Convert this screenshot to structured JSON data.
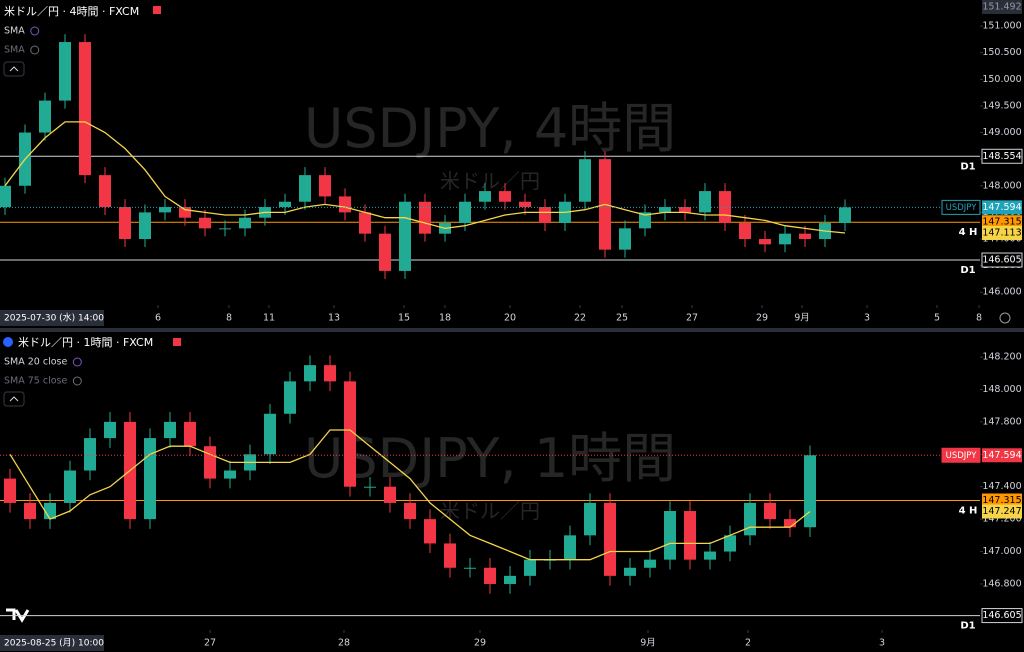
{
  "chart_data": [
    {
      "type": "candlestick",
      "title": "米ドル／円 · 4時間 · FXCM",
      "symbol": "USDJPY",
      "watermark": "USDJPY, 4時間",
      "watermark_sub": "米ドル／円",
      "indicators": [
        {
          "name": "SMA",
          "visible": true
        },
        {
          "name": "SMA",
          "visible": false
        }
      ],
      "date_label": "2025-07-30 (水)  14:00",
      "up_color": "#22ab94",
      "down_color": "#f23645",
      "xlim": [
        -0.25,
        48.75
      ],
      "xticks": [
        {
          "value": 7.65,
          "label": "6"
        },
        {
          "value": 11.2,
          "label": "8"
        },
        {
          "value": 13.2,
          "label": "11"
        },
        {
          "value": 16.45,
          "label": "13"
        },
        {
          "value": 19.95,
          "label": "15"
        },
        {
          "value": 22,
          "label": "18"
        },
        {
          "value": 25.25,
          "label": "20"
        },
        {
          "value": 28.75,
          "label": "22"
        },
        {
          "value": 30.85,
          "label": "25"
        },
        {
          "value": 34.35,
          "label": "27"
        },
        {
          "value": 37.85,
          "label": "29"
        },
        {
          "value": 39.85,
          "label": "9月"
        },
        {
          "value": 43.1,
          "label": "3"
        },
        {
          "value": 46.6,
          "label": "5"
        },
        {
          "value": 48.7,
          "label": "8"
        }
      ],
      "ylim": [
        145.76,
        151.49
      ],
      "yticks": [
        {
          "value": 146,
          "label": "146.000"
        },
        {
          "value": 146.5,
          "label": "146.500"
        },
        {
          "value": 147,
          "label": "147.000"
        },
        {
          "value": 147.5,
          "label": "147.500"
        },
        {
          "value": 148,
          "label": "148.000"
        },
        {
          "value": 148.5,
          "label": "148.500"
        },
        {
          "value": 149,
          "label": "149.000"
        },
        {
          "value": 149.5,
          "label": "149.500"
        },
        {
          "value": 150,
          "label": "150.000"
        },
        {
          "value": 150.5,
          "label": "150.500"
        },
        {
          "value": 151,
          "label": "151.000"
        }
      ],
      "x": [
        0,
        1,
        2,
        3,
        4,
        5,
        6,
        7,
        8,
        9,
        10,
        11,
        12,
        13,
        14,
        15,
        16,
        17,
        18,
        19,
        20,
        21,
        22,
        23,
        24,
        25,
        26,
        27,
        28,
        29,
        30,
        31,
        32,
        33,
        34,
        35,
        36,
        37,
        38,
        39,
        40,
        41,
        42
      ],
      "open": [
        147.6,
        148.0,
        149.0,
        149.6,
        150.7,
        148.2,
        147.6,
        147.0,
        147.5,
        147.6,
        147.4,
        147.2,
        147.2,
        147.4,
        147.6,
        147.7,
        148.2,
        147.8,
        147.5,
        147.1,
        146.4,
        147.7,
        147.1,
        147.3,
        147.7,
        147.9,
        147.7,
        147.6,
        147.3,
        147.7,
        148.5,
        146.8,
        147.2,
        147.5,
        147.6,
        147.5,
        147.9,
        147.3,
        147.0,
        146.9,
        147.1,
        147.0,
        147.3
      ],
      "high": [
        148.15,
        149.15,
        149.75,
        150.85,
        150.85,
        148.35,
        147.75,
        147.65,
        147.75,
        147.75,
        147.55,
        147.35,
        147.55,
        147.75,
        147.85,
        148.35,
        148.35,
        147.95,
        147.65,
        147.25,
        147.85,
        147.85,
        147.45,
        147.85,
        148.05,
        148.05,
        147.85,
        147.75,
        147.85,
        148.65,
        148.65,
        147.35,
        147.65,
        147.75,
        147.75,
        148.05,
        148.05,
        147.45,
        147.15,
        147.25,
        147.25,
        147.45,
        147.744
      ],
      "low": [
        147.45,
        147.85,
        148.85,
        149.45,
        148.05,
        147.45,
        146.85,
        146.85,
        147.35,
        147.25,
        147.05,
        147.05,
        147.05,
        147.25,
        147.45,
        147.55,
        147.65,
        147.35,
        146.95,
        146.25,
        146.25,
        146.95,
        146.95,
        147.15,
        147.55,
        147.55,
        147.45,
        147.15,
        147.15,
        147.55,
        146.65,
        146.65,
        147.05,
        147.35,
        147.35,
        147.35,
        147.15,
        146.85,
        146.75,
        146.75,
        146.85,
        146.85,
        147.15
      ],
      "close": [
        148.0,
        149.0,
        149.6,
        150.7,
        148.2,
        147.6,
        147.0,
        147.5,
        147.6,
        147.4,
        147.2,
        147.2,
        147.4,
        147.6,
        147.7,
        148.2,
        147.8,
        147.5,
        147.1,
        146.4,
        147.7,
        147.1,
        147.3,
        147.7,
        147.9,
        147.7,
        147.6,
        147.3,
        147.7,
        148.5,
        146.8,
        147.2,
        147.5,
        147.6,
        147.5,
        147.9,
        147.3,
        147.0,
        146.9,
        147.1,
        147.0,
        147.3,
        147.594
      ],
      "sma": {
        "color": "#f5d547",
        "values": [
          148.0,
          148.5,
          148.9,
          149.2,
          149.2,
          149.0,
          148.7,
          148.3,
          147.8,
          147.55,
          147.5,
          147.45,
          147.45,
          147.5,
          147.5,
          147.6,
          147.65,
          147.6,
          147.5,
          147.4,
          147.4,
          147.3,
          147.2,
          147.25,
          147.35,
          147.45,
          147.5,
          147.5,
          147.5,
          147.55,
          147.65,
          147.55,
          147.45,
          147.5,
          147.5,
          147.45,
          147.45,
          147.4,
          147.35,
          147.25,
          147.2,
          147.15,
          147.113
        ]
      },
      "levels": [
        {
          "value": 148.554,
          "label": "148.554",
          "tag": "D1",
          "color": "#d1d4dc"
        },
        {
          "value": 147.315,
          "label": "147.315",
          "tag": "4 H",
          "color": "#ff9800"
        },
        {
          "value": 146.605,
          "label": "146.605",
          "tag": "D1",
          "color": "#d1d4dc"
        }
      ],
      "price_tags": [
        {
          "value": 151.492,
          "label": "151.492",
          "color": "#2a2e39",
          "text_color": "#9598a1"
        },
        {
          "value": 147.594,
          "label": "147.594",
          "name": "USDJPY",
          "color": "#1fa3b8",
          "text_color": "#ffffff"
        },
        {
          "value": 147.113,
          "label": "147.113",
          "color": "#f5d547",
          "text_color": "#000000"
        }
      ]
    },
    {
      "type": "candlestick",
      "title": "米ドル／円 · 1時間 · FXCM",
      "symbol": "USDJPY",
      "watermark": "USDJPY, 1時間",
      "watermark_sub": "米ドル／円",
      "indicators": [
        {
          "name": "SMA 20 close",
          "visible": true
        },
        {
          "name": "SMA 75 close",
          "visible": false
        }
      ],
      "date_label": "2025-08-25 (月)  10:00",
      "up_color": "#22ab94",
      "down_color": "#f23645",
      "xlim": [
        -0.5,
        48.5
      ],
      "xticks": [
        {
          "value": 10,
          "label": "27"
        },
        {
          "value": 16.7,
          "label": "28"
        },
        {
          "value": 23.5,
          "label": "29"
        },
        {
          "value": 31.9,
          "label": "9月"
        },
        {
          "value": 36.9,
          "label": "2"
        },
        {
          "value": 43.6,
          "label": "3"
        }
      ],
      "ylim": [
        146.516,
        148.336
      ],
      "yticks": [
        {
          "value": 146.8,
          "label": "146.800"
        },
        {
          "value": 147,
          "label": "147.000"
        },
        {
          "value": 147.2,
          "label": "147.200"
        },
        {
          "value": 147.4,
          "label": "147.400"
        },
        {
          "value": 147.6,
          "label": "147.600"
        },
        {
          "value": 147.8,
          "label": "147.800"
        },
        {
          "value": 148,
          "label": "148.000"
        },
        {
          "value": 148.2,
          "label": "148.200"
        }
      ],
      "x": [
        0,
        1,
        2,
        3,
        4,
        5,
        6,
        7,
        8,
        9,
        10,
        11,
        12,
        13,
        14,
        15,
        16,
        17,
        18,
        19,
        20,
        21,
        22,
        23,
        24,
        25,
        26,
        27,
        28,
        29,
        30,
        31,
        32,
        33,
        34,
        35,
        36,
        37,
        38,
        39,
        40
      ],
      "open": [
        147.45,
        147.3,
        147.2,
        147.3,
        147.5,
        147.7,
        147.8,
        147.2,
        147.7,
        147.8,
        147.65,
        147.45,
        147.5,
        147.6,
        147.85,
        148.05,
        148.15,
        148.05,
        147.4,
        147.4,
        147.3,
        147.2,
        147.05,
        146.9,
        146.9,
        146.8,
        146.85,
        146.95,
        146.95,
        147.1,
        147.3,
        146.85,
        146.9,
        146.95,
        147.25,
        146.95,
        147.0,
        147.1,
        147.3,
        147.2,
        147.15
      ],
      "high": [
        147.51,
        147.36,
        147.36,
        147.56,
        147.76,
        147.86,
        147.86,
        147.76,
        147.86,
        147.86,
        147.71,
        147.56,
        147.66,
        147.91,
        148.11,
        148.21,
        148.21,
        148.11,
        147.46,
        147.46,
        147.36,
        147.26,
        147.11,
        146.96,
        146.96,
        146.91,
        147.01,
        147.01,
        147.16,
        147.36,
        147.36,
        146.96,
        147.01,
        147.31,
        147.31,
        147.06,
        147.16,
        147.36,
        147.36,
        147.26,
        147.654
      ],
      "low": [
        147.24,
        147.14,
        147.14,
        147.24,
        147.44,
        147.64,
        147.14,
        147.14,
        147.64,
        147.59,
        147.39,
        147.39,
        147.44,
        147.54,
        147.79,
        147.99,
        147.99,
        147.34,
        147.34,
        147.24,
        147.14,
        146.99,
        146.84,
        146.84,
        146.74,
        146.74,
        146.79,
        146.89,
        146.89,
        147.04,
        146.79,
        146.79,
        146.84,
        146.89,
        146.89,
        146.89,
        146.94,
        147.04,
        147.14,
        147.09,
        147.09
      ],
      "close": [
        147.3,
        147.2,
        147.3,
        147.5,
        147.7,
        147.8,
        147.2,
        147.7,
        147.8,
        147.65,
        147.45,
        147.5,
        147.6,
        147.85,
        148.05,
        148.15,
        148.05,
        147.4,
        147.4,
        147.3,
        147.2,
        147.05,
        146.9,
        146.9,
        146.8,
        146.85,
        146.95,
        146.95,
        147.1,
        147.3,
        146.85,
        146.9,
        146.95,
        147.25,
        146.95,
        147.0,
        147.1,
        147.3,
        147.2,
        147.15,
        147.594
      ],
      "sma": {
        "color": "#f5d547",
        "values": [
          147.6,
          147.4,
          147.2,
          147.25,
          147.35,
          147.4,
          147.5,
          147.6,
          147.65,
          147.65,
          147.6,
          147.55,
          147.55,
          147.55,
          147.55,
          147.6,
          147.75,
          147.75,
          147.65,
          147.55,
          147.45,
          147.3,
          147.2,
          147.1,
          147.05,
          147.0,
          146.95,
          146.95,
          146.95,
          146.95,
          147.0,
          147.0,
          147.0,
          147.05,
          147.05,
          147.05,
          147.1,
          147.15,
          147.15,
          147.15,
          147.247
        ]
      },
      "levels": [
        {
          "value": 147.315,
          "label": "147.315",
          "tag": "4 H",
          "color": "#ff9800"
        },
        {
          "value": 146.605,
          "label": "146.605",
          "tag": "D1",
          "color": "#d1d4dc"
        }
      ],
      "price_tags": [
        {
          "value": 147.594,
          "label": "147.594",
          "name": "USDJPY",
          "color": "#f23645",
          "text_color": "#ffffff"
        },
        {
          "value": 147.247,
          "label": "147.247",
          "color": "#f5d547",
          "text_color": "#000000"
        }
      ]
    }
  ]
}
